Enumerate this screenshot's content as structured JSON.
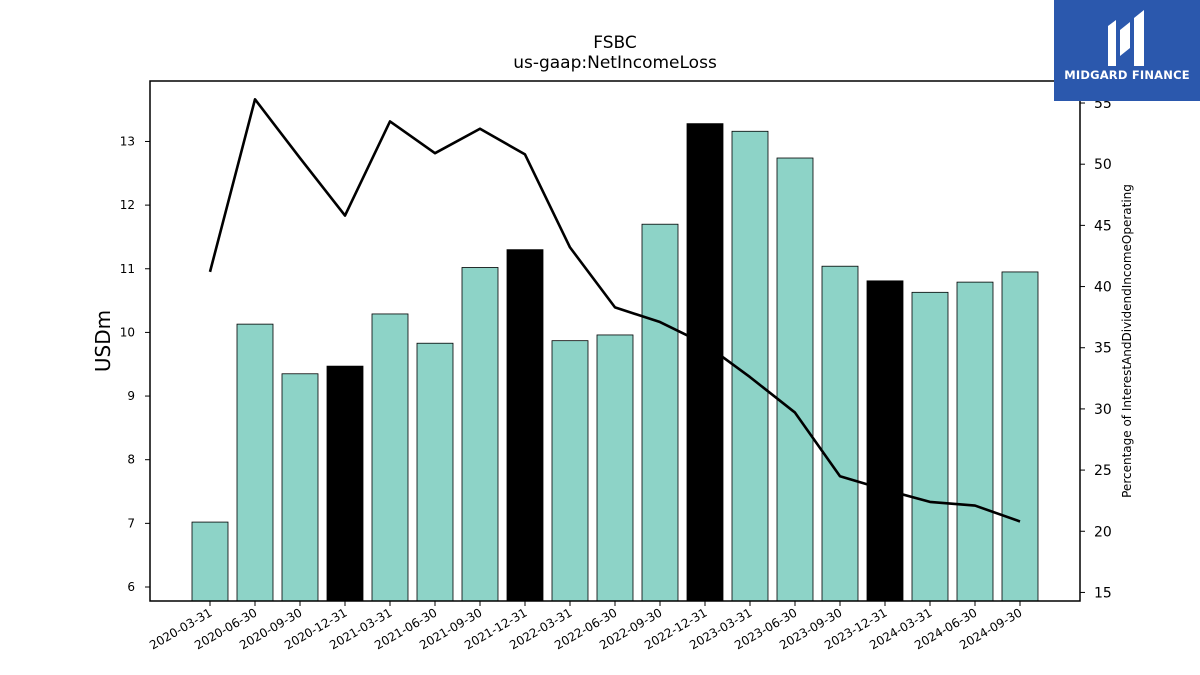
{
  "brand": {
    "name": "MIDGARD FINANCE",
    "logo_icon": "midgard-logo-icon",
    "background_color": "#2b58ad"
  },
  "chart_data": {
    "type": "bar",
    "title": "FSBC",
    "subtitle": "us-gaap:NetIncomeLoss",
    "ylabel": "USDm",
    "ylabel_right": "Percentage of InterestAndDividendIncomeOperating",
    "categories": [
      "2020-03-31",
      "2020-06-30",
      "2020-09-30",
      "2020-12-31",
      "2021-03-31",
      "2021-06-30",
      "2021-09-30",
      "2021-12-31",
      "2022-03-31",
      "2022-06-30",
      "2022-09-30",
      "2022-12-31",
      "2023-03-31",
      "2023-06-30",
      "2023-09-30",
      "2023-12-31",
      "2024-03-31",
      "2024-06-30",
      "2024-09-30"
    ],
    "ylim": [
      5.78,
      13.95
    ],
    "yticks": [
      6,
      7,
      8,
      9,
      10,
      11,
      12,
      13
    ],
    "ylim_right": [
      14.3,
      56.8
    ],
    "yticks_right": [
      15,
      20,
      25,
      30,
      35,
      40,
      45,
      50,
      55
    ],
    "series": [
      {
        "type": "bar",
        "values": [
          7.02,
          10.13,
          9.35,
          9.47,
          10.29,
          9.83,
          11.02,
          11.3,
          9.87,
          9.96,
          11.7,
          13.28,
          13.16,
          12.74,
          11.04,
          10.81,
          10.63,
          10.79,
          10.95
        ],
        "highlight": [
          false,
          false,
          false,
          true,
          false,
          false,
          false,
          true,
          false,
          false,
          false,
          true,
          false,
          false,
          false,
          true,
          false,
          false,
          false
        ],
        "color": "#8dd3c7",
        "highlight_color": "#000000"
      },
      {
        "type": "line",
        "axis": "right",
        "values": [
          41.2,
          55.3,
          50.5,
          45.8,
          53.5,
          50.9,
          52.9,
          50.8,
          43.2,
          38.3,
          37.1,
          35.3,
          32.6,
          29.7,
          24.5,
          23.4,
          22.4,
          22.1,
          20.8
        ],
        "color": "#000000"
      }
    ],
    "grid": false,
    "legend": "none"
  }
}
